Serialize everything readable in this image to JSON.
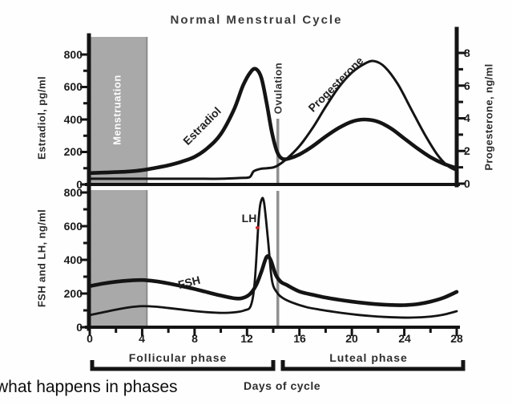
{
  "title": "Normal Menstrual Cycle",
  "annotation": "what happens in phases",
  "colors": {
    "curve": "#141414",
    "band": "#a9a9a9",
    "band_edge": "#8c8c8c",
    "ovulation_line": "#909090",
    "red_dot": "#e02020",
    "title_text": "#3a3a3a"
  },
  "chart_data": {
    "type": "line",
    "title": "Normal Menstrual Cycle",
    "x_label": "Days of cycle",
    "x_range": [
      0,
      28
    ],
    "x_ticks": [
      0,
      4,
      8,
      12,
      16,
      20,
      24,
      28
    ],
    "grid": false,
    "legend": "inline-curve-labels",
    "phases": [
      {
        "label": "Follicular phase",
        "x": [
          0,
          14
        ]
      },
      {
        "label": "Luteal phase",
        "x": [
          14.6,
          28.5
        ]
      }
    ],
    "panels": [
      {
        "id": "ovarian-hormones",
        "left_axis": {
          "label": "Estradiol, pg/ml",
          "ticks": [
            0,
            200,
            400,
            600,
            800
          ],
          "range": [
            0,
            900
          ],
          "minor_step": 100
        },
        "right_axis": {
          "label": "Progesterone, ng/ml",
          "ticks": [
            0,
            2,
            4,
            6,
            8
          ],
          "range": [
            0,
            9.5
          ],
          "minor_step": 1
        },
        "regions": [
          {
            "label": "Menstruation",
            "x": [
              0,
              4.3
            ]
          },
          {
            "label": "Ovulation",
            "x": 14.35
          }
        ],
        "series": [
          {
            "name": "Estradiol",
            "axis": "left",
            "unit": "pg/ml",
            "points": [
              [
                0,
                70
              ],
              [
                1,
                73
              ],
              [
                2,
                76
              ],
              [
                3,
                80
              ],
              [
                4,
                88
              ],
              [
                5,
                102
              ],
              [
                6,
                118
              ],
              [
                7,
                140
              ],
              [
                8,
                170
              ],
              [
                9,
                225
              ],
              [
                10,
                310
              ],
              [
                11,
                460
              ],
              [
                11.7,
                610
              ],
              [
                12.3,
                695
              ],
              [
                12.7,
                710
              ],
              [
                13.1,
                655
              ],
              [
                13.5,
                500
              ],
              [
                13.9,
                320
              ],
              [
                14.3,
                200
              ],
              [
                14.7,
                158
              ],
              [
                15.2,
                160
              ],
              [
                16,
                185
              ],
              [
                17,
                235
              ],
              [
                18,
                295
              ],
              [
                19,
                348
              ],
              [
                20,
                387
              ],
              [
                21,
                400
              ],
              [
                22,
                386
              ],
              [
                23,
                344
              ],
              [
                24,
                283
              ],
              [
                25,
                222
              ],
              [
                26,
                168
              ],
              [
                27,
                128
              ],
              [
                28,
                100
              ]
            ]
          },
          {
            "name": "Progesterone",
            "axis": "right",
            "unit": "ng/ml",
            "points": [
              [
                0,
                0.3
              ],
              [
                2,
                0.3
              ],
              [
                4,
                0.3
              ],
              [
                6,
                0.3
              ],
              [
                8,
                0.3
              ],
              [
                10,
                0.3
              ],
              [
                11.5,
                0.35
              ],
              [
                12.2,
                0.4
              ],
              [
                12.5,
                0.75
              ],
              [
                13,
                0.9
              ],
              [
                13.6,
                0.95
              ],
              [
                14.2,
                1.05
              ],
              [
                15,
                1.5
              ],
              [
                16,
                2.3
              ],
              [
                17,
                3.4
              ],
              [
                18,
                4.7
              ],
              [
                19,
                5.9
              ],
              [
                20,
                6.8
              ],
              [
                21,
                7.35
              ],
              [
                21.7,
                7.5
              ],
              [
                22.5,
                7.15
              ],
              [
                23.5,
                6.1
              ],
              [
                24.5,
                4.6
              ],
              [
                25.5,
                3.1
              ],
              [
                26.5,
                1.8
              ],
              [
                27.3,
                1.1
              ],
              [
                28,
                0.8
              ]
            ]
          }
        ]
      },
      {
        "id": "gonadotropins",
        "left_axis": {
          "label": "FSH and LH, ng/ml",
          "ticks": [
            0,
            200,
            400,
            600,
            800
          ],
          "range": [
            0,
            800
          ],
          "minor_step": 100
        },
        "series": [
          {
            "name": "FSH",
            "axis": "left",
            "unit": "ng/ml",
            "points": [
              [
                0,
                244
              ],
              [
                1,
                259
              ],
              [
                2,
                270
              ],
              [
                3,
                277
              ],
              [
                4,
                280
              ],
              [
                5,
                273
              ],
              [
                6,
                260
              ],
              [
                7,
                244
              ],
              [
                8,
                227
              ],
              [
                9,
                207
              ],
              [
                10,
                188
              ],
              [
                11,
                172
              ],
              [
                11.6,
                172
              ],
              [
                12.2,
                195
              ],
              [
                12.7,
                250
              ],
              [
                13.1,
                330
              ],
              [
                13.5,
                418
              ],
              [
                13.8,
                400
              ],
              [
                14.2,
                310
              ],
              [
                14.6,
                268
              ],
              [
                15,
                252
              ],
              [
                16,
                212
              ],
              [
                17,
                193
              ],
              [
                18,
                176
              ],
              [
                19,
                163
              ],
              [
                20,
                152
              ],
              [
                21,
                143
              ],
              [
                22,
                136
              ],
              [
                23,
                132
              ],
              [
                24,
                131
              ],
              [
                25,
                137
              ],
              [
                26,
                152
              ],
              [
                27,
                175
              ],
              [
                28,
                210
              ]
            ]
          },
          {
            "name": "LH",
            "axis": "left",
            "unit": "ng/ml",
            "points": [
              [
                0,
                72
              ],
              [
                1,
                88
              ],
              [
                2,
                104
              ],
              [
                3,
                118
              ],
              [
                4,
                125
              ],
              [
                5,
                122
              ],
              [
                6,
                114
              ],
              [
                7,
                105
              ],
              [
                8,
                96
              ],
              [
                9,
                89
              ],
              [
                10,
                85
              ],
              [
                11,
                88
              ],
              [
                11.8,
                100
              ],
              [
                12.3,
                130
              ],
              [
                12.6,
                280
              ],
              [
                12.9,
                650
              ],
              [
                13.1,
                755
              ],
              [
                13.3,
                740
              ],
              [
                13.6,
                520
              ],
              [
                13.9,
                280
              ],
              [
                14.3,
                205
              ],
              [
                14.8,
                170
              ],
              [
                15.5,
                145
              ],
              [
                16.5,
                120
              ],
              [
                17.5,
                105
              ],
              [
                18.5,
                93
              ],
              [
                19.5,
                82
              ],
              [
                20.5,
                73
              ],
              [
                21.5,
                66
              ],
              [
                22.5,
                61
              ],
              [
                23.5,
                58
              ],
              [
                24.5,
                57
              ],
              [
                25.5,
                60
              ],
              [
                26.5,
                68
              ],
              [
                27.2,
                78
              ],
              [
                28,
                95
              ]
            ]
          }
        ]
      }
    ]
  }
}
